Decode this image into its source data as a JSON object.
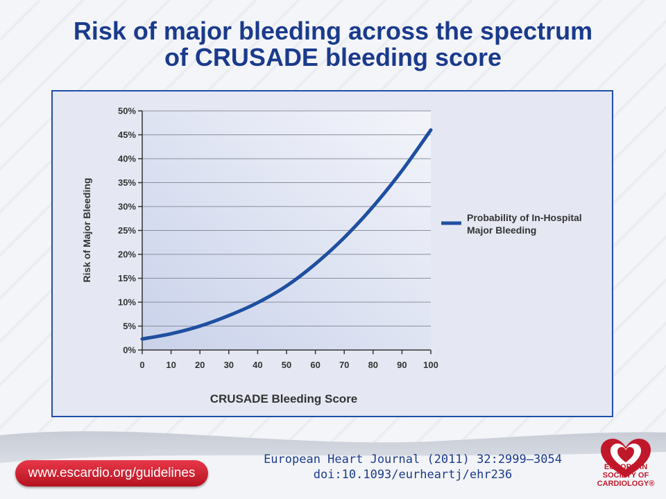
{
  "title_line1": "Risk of major bleeding across the spectrum",
  "title_line2": "of CRUSADE bleeding score",
  "chart_data": {
    "type": "line",
    "xlabel": "CRUSADE Bleeding Score",
    "ylabel": "Risk of Major Bleeding",
    "xlim": [
      0,
      100
    ],
    "ylim": [
      0,
      50
    ],
    "x_ticks": [
      "0",
      "10",
      "20",
      "30",
      "40",
      "50",
      "60",
      "70",
      "80",
      "90",
      "100"
    ],
    "y_ticks": [
      "0%",
      "5%",
      "10%",
      "15%",
      "20%",
      "25%",
      "30%",
      "35%",
      "40%",
      "45%",
      "50%"
    ],
    "grid": true,
    "legend_position": "right",
    "series": [
      {
        "name": "Probability of In-Hospital Major Bleeding",
        "color": "#1f4fa0",
        "x": [
          0,
          10,
          20,
          30,
          40,
          50,
          60,
          70,
          80,
          90,
          100
        ],
        "y": [
          2.3,
          3.4,
          5.0,
          7.2,
          9.9,
          13.4,
          18.0,
          23.5,
          30.0,
          37.5,
          46.0
        ]
      }
    ]
  },
  "legend_line1": "Probability of In-Hospital",
  "legend_line2": "Major Bleeding",
  "footer": {
    "url": "www.escardio.org/guidelines",
    "citation_line1": "European Heart Journal (2011) 32:2999–3054",
    "citation_line2": "doi:10.1093/eurheartj/ehr236",
    "logo_line1": "EUROPEAN",
    "logo_line2": "SOCIETY OF",
    "logo_line3": "CARDIOLOGY®"
  }
}
